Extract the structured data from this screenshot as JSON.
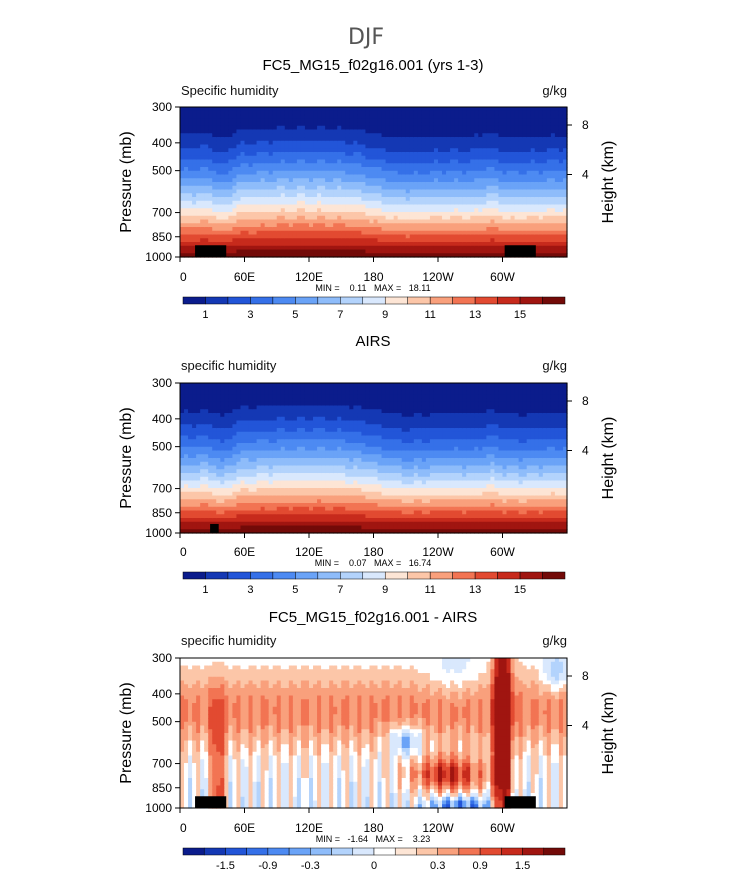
{
  "figure": {
    "title": "DJF"
  },
  "colors": {
    "abs_palette": [
      "#0b1c8c",
      "#1438b4",
      "#2255d8",
      "#3570e8",
      "#4d8af2",
      "#6aa3f7",
      "#8ebcfa",
      "#b3d3fc",
      "#d9e8fd",
      "#fde5d5",
      "#fcc6a8",
      "#f9a07c",
      "#f27453",
      "#e24a31",
      "#c72a1c",
      "#a01510",
      "#730a08"
    ],
    "diff_palette": [
      "#0b1c8c",
      "#1438b4",
      "#2255d8",
      "#3570e8",
      "#4d8af2",
      "#6aa3f7",
      "#8ebcfa",
      "#b3d3fc",
      "#d9e8fd",
      "#ffffff",
      "#fde5d5",
      "#fcc6a8",
      "#f9a07c",
      "#f27453",
      "#e24a31",
      "#c72a1c",
      "#a01510",
      "#730a08"
    ]
  },
  "chart_data": [
    {
      "type": "heatmap",
      "title": "FC5_MG15_f02g16.001 (yrs 1-3)",
      "variable_label": "Specific humidity",
      "units": "g/kg",
      "ylabel": "Pressure (mb)",
      "y2label": "Height (km)",
      "x_ticks": [
        "0",
        "60E",
        "120E",
        "180",
        "120W",
        "60W"
      ],
      "x_tick_values": [
        0,
        60,
        120,
        180,
        240,
        300
      ],
      "xlim": [
        0,
        360
      ],
      "y_ticks": [
        "300",
        "400",
        "500",
        "700",
        "850",
        "1000"
      ],
      "y_tick_values": [
        300,
        400,
        500,
        700,
        850,
        1000
      ],
      "ylim": [
        300,
        1000
      ],
      "y2_ticks": [
        "8",
        "4"
      ],
      "y2_tick_values": [
        8,
        4
      ],
      "min_max_text": "MIN =    0.11   MAX =   18.11",
      "colorbar_labels": [
        "1",
        "3",
        "5",
        "7",
        "9",
        "11",
        "13",
        "15"
      ],
      "colorbar_levels": [
        1,
        3,
        5,
        7,
        9,
        11,
        13,
        15
      ]
    },
    {
      "type": "heatmap",
      "title": "AIRS",
      "variable_label": "specific humidity",
      "units": "g/kg",
      "ylabel": "Pressure (mb)",
      "y2label": "Height (km)",
      "x_ticks": [
        "0",
        "60E",
        "120E",
        "180",
        "120W",
        "60W"
      ],
      "x_tick_values": [
        0,
        60,
        120,
        180,
        240,
        300
      ],
      "xlim": [
        0,
        360
      ],
      "y_ticks": [
        "300",
        "400",
        "500",
        "700",
        "850",
        "1000"
      ],
      "y_tick_values": [
        300,
        400,
        500,
        700,
        850,
        1000
      ],
      "ylim": [
        300,
        1000
      ],
      "y2_ticks": [
        "8",
        "4"
      ],
      "y2_tick_values": [
        8,
        4
      ],
      "min_max_text": "MIN =    0.07   MAX =   16.74",
      "colorbar_labels": [
        "1",
        "3",
        "5",
        "7",
        "9",
        "11",
        "13",
        "15"
      ],
      "colorbar_levels": [
        1,
        3,
        5,
        7,
        9,
        11,
        13,
        15
      ]
    },
    {
      "type": "heatmap",
      "title": "FC5_MG15_f02g16.001 - AIRS",
      "variable_label": "specific humidity",
      "units": "g/kg",
      "ylabel": "Pressure (mb)",
      "y2label": "Height (km)",
      "x_ticks": [
        "0",
        "60E",
        "120E",
        "180",
        "120W",
        "60W"
      ],
      "x_tick_values": [
        0,
        60,
        120,
        180,
        240,
        300
      ],
      "xlim": [
        0,
        360
      ],
      "y_ticks": [
        "300",
        "400",
        "500",
        "700",
        "850",
        "1000"
      ],
      "y_tick_values": [
        300,
        400,
        500,
        700,
        850,
        1000
      ],
      "ylim": [
        300,
        1000
      ],
      "y2_ticks": [
        "8",
        "4"
      ],
      "y2_tick_values": [
        8,
        4
      ],
      "min_max_text": "MIN =   -1.64   MAX =    3.23",
      "colorbar_labels": [
        "-1.5",
        "-0.9",
        "-0.3",
        "0",
        "0.3",
        "0.9",
        "1.5"
      ],
      "colorbar_levels": [
        -1.5,
        -0.9,
        -0.3,
        0,
        0.3,
        0.9,
        1.5
      ]
    }
  ]
}
